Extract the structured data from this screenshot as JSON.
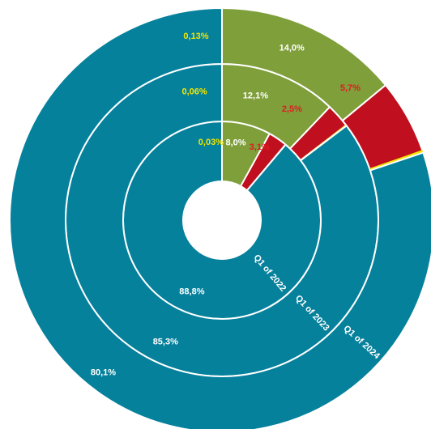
{
  "chart_data": {
    "type": "pie",
    "subtype": "multi-level donut",
    "title": "",
    "categories": [
      "Green",
      "Red",
      "Yellow",
      "Teal"
    ],
    "colors": {
      "Green": "#7f9f3a",
      "Red": "#c0101f",
      "Yellow": "#f2e600",
      "Teal": "#06819c",
      "label_light": "#ffffff",
      "label_red": "#e01b24",
      "label_yellow": "#f2e600"
    },
    "series": [
      {
        "name": "Q1 of 2022",
        "values": [
          8.0,
          3.1,
          0.03,
          88.8
        ],
        "labels": [
          "8,0%",
          "3,1%",
          "0,03%",
          "88,8%"
        ]
      },
      {
        "name": "Q1 of 2023",
        "values": [
          12.1,
          2.5,
          0.06,
          85.3
        ],
        "labels": [
          "12,1%",
          "2,5%",
          "0,06%",
          "85,3%"
        ]
      },
      {
        "name": "Q1 of 2024",
        "values": [
          14.0,
          5.7,
          0.13,
          80.1
        ],
        "labels": [
          "14,0%",
          "5,7%",
          "0,13%",
          "80,1%"
        ]
      }
    ],
    "legend": "none"
  }
}
